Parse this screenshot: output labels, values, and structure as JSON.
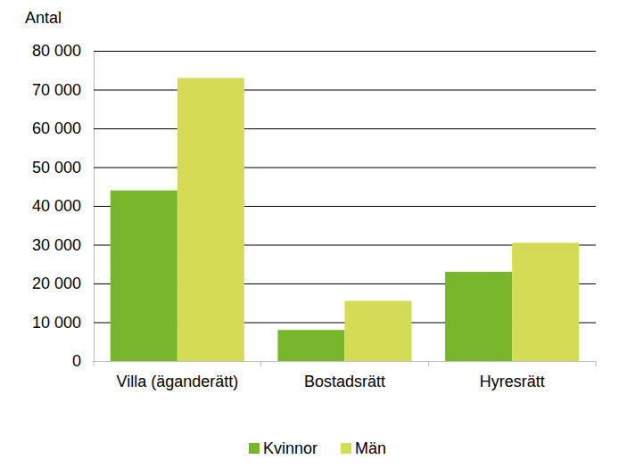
{
  "chart_data": {
    "type": "bar",
    "y_label": "Antal",
    "categories": [
      "Villa (äganderätt)",
      "Bostadsrätt",
      "Hyresrätt"
    ],
    "series": [
      {
        "name": "Kvinnor",
        "color": "#78b72b",
        "values": [
          44000,
          8000,
          23000
        ]
      },
      {
        "name": "Män",
        "color": "#d4dc55",
        "values": [
          73000,
          15500,
          30500
        ]
      }
    ],
    "ylim": [
      0,
      80000
    ],
    "yticks": [
      0,
      {
        "value": 10000,
        "label": "10 000"
      },
      {
        "value": 20000,
        "label": "20 000"
      },
      {
        "value": 30000,
        "label": "30 000"
      },
      {
        "value": 40000,
        "label": "40 000"
      },
      {
        "value": 50000,
        "label": "50 000"
      },
      {
        "value": 60000,
        "label": "60 000"
      },
      {
        "value": 70000,
        "label": "70 000"
      },
      {
        "value": 80000,
        "label": "80 000"
      }
    ],
    "grid": true,
    "legend": "bottom"
  }
}
